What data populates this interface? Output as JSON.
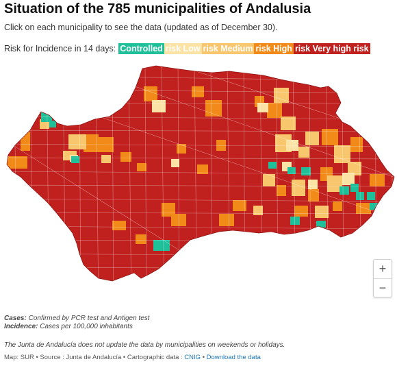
{
  "title": "Situation of the 785 municipalities of Andalusia",
  "subtitle": "Click on each municipality to see the data (updated as of December 30).",
  "legend": {
    "label": "Risk for Incidence in 14 days:",
    "items": [
      {
        "label": "Controlled",
        "color": "#1fbf99"
      },
      {
        "label": "risk Low",
        "color": "#fbe3a6"
      },
      {
        "label": "risk Medium",
        "color": "#f8c76d"
      },
      {
        "label": "risk High",
        "color": "#f28a1a"
      },
      {
        "label": "risk Very high risk",
        "color": "#c0201e"
      }
    ]
  },
  "zoom": {
    "in": "+",
    "out": "−"
  },
  "notes": {
    "cases_label": "Cases:",
    "cases_text": "Confirmed by PCR test and Antigen test",
    "incidence_label": "Incidence:",
    "incidence_text": "Cases per 100,000 inhabitants"
  },
  "disclaimer": "The Junta de Andalucía does not update the data by municipalities on weekends or holidays.",
  "footer": {
    "prefix": "Map: SUR • Source : Junta de Andalucía • Cartographic data :",
    "cnig": "CNIG",
    "sep": "•",
    "download": "Download the data"
  }
}
